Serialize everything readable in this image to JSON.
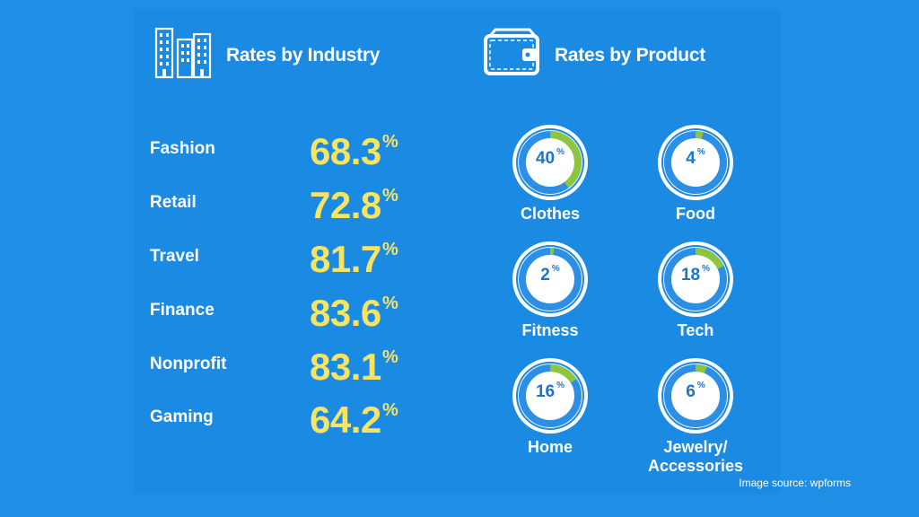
{
  "headings": {
    "industry": "Rates by Industry",
    "product": "Rates by Product"
  },
  "colors": {
    "background": "#1f8fe6",
    "value_yellow": "#f7e463",
    "ring_blue": "#2d8ee6",
    "ring_green": "#8cc63f",
    "ring_text": "#1d74d0"
  },
  "icons": {
    "industry": "buildings-icon",
    "product": "wallet-icon"
  },
  "chart_data": [
    {
      "type": "table",
      "title": "Rates by Industry",
      "categories": [
        "Fashion",
        "Retail",
        "Travel",
        "Finance",
        "Nonprofit",
        "Gaming"
      ],
      "values": [
        "68.3",
        "72.8",
        "81.7",
        "83.6",
        "83.1",
        "64.2"
      ],
      "unit": "%"
    },
    {
      "type": "pie",
      "title": "Rates by Product",
      "categories": [
        "Clothes",
        "Food",
        "Fitness",
        "Tech",
        "Home",
        "Jewelry/ Accessories"
      ],
      "values": [
        40,
        4,
        2,
        18,
        16,
        6
      ],
      "unit": "%"
    }
  ],
  "source": "Image source: wpforms"
}
